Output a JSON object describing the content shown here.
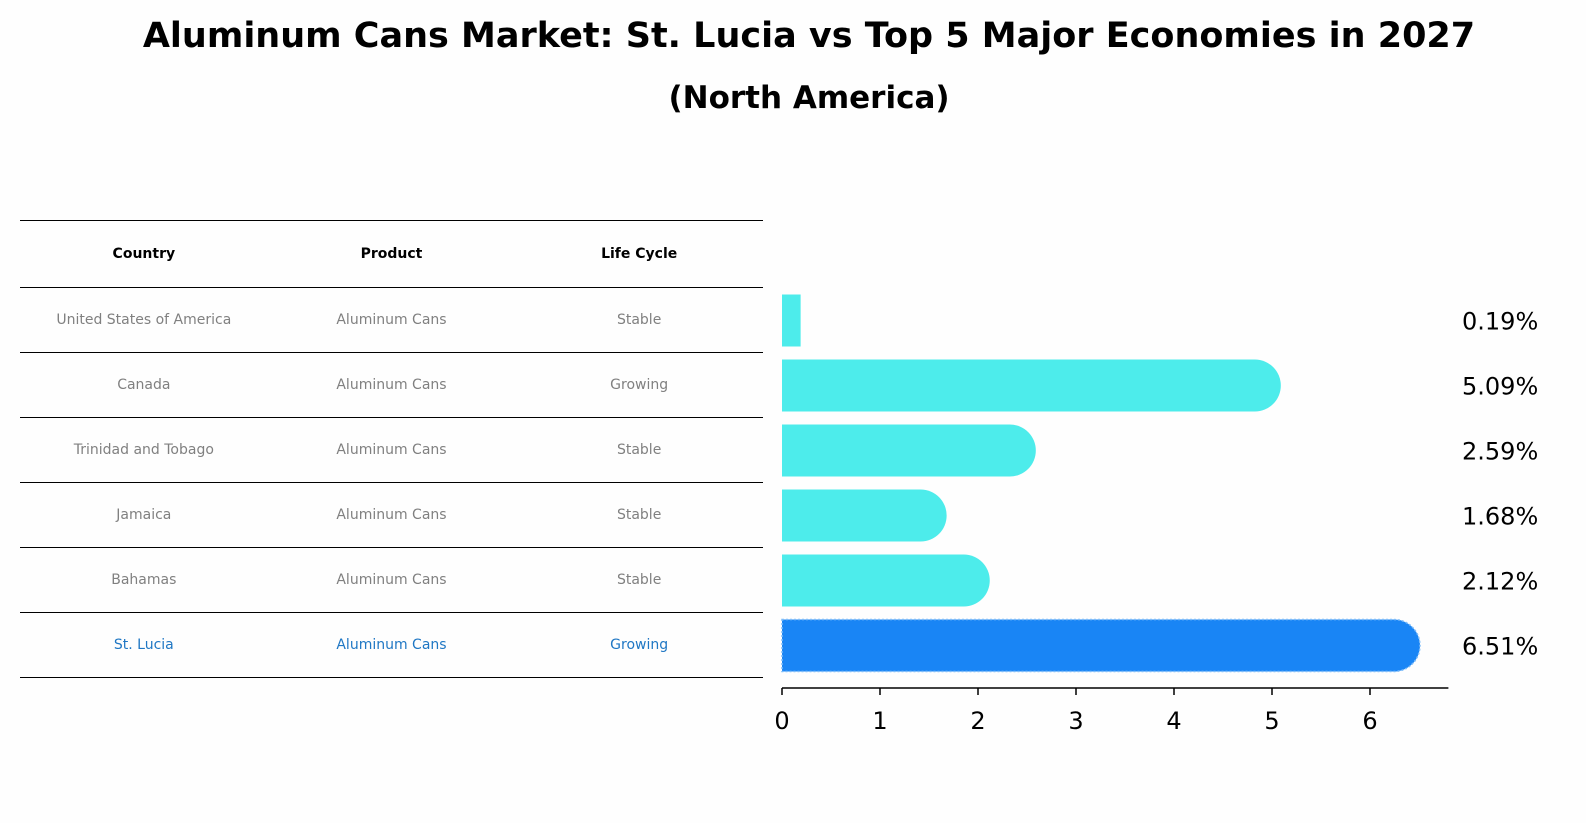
{
  "title": "Aluminum Cans Market: St. Lucia vs Top 5 Major Economies in 2027",
  "subtitle": "(North America)",
  "table": {
    "headers": [
      "Country",
      "Product",
      "Life Cycle"
    ],
    "rows": [
      {
        "country": "United States of America",
        "product": "Aluminum Cans",
        "life_cycle": "Stable"
      },
      {
        "country": "Canada",
        "product": "Aluminum Cans",
        "life_cycle": "Growing"
      },
      {
        "country": "Trinidad and Tobago",
        "product": "Aluminum Cans",
        "life_cycle": "Stable"
      },
      {
        "country": "Jamaica",
        "product": "Aluminum Cans",
        "life_cycle": "Stable"
      },
      {
        "country": "Bahamas",
        "product": "Aluminum Cans",
        "life_cycle": "Stable"
      },
      {
        "country": "St. Lucia",
        "product": "Aluminum Cans",
        "life_cycle": "Growing"
      }
    ]
  },
  "chart_data": {
    "type": "bar",
    "orientation": "horizontal",
    "categories": [
      "United States of America",
      "Canada",
      "Trinidad and Tobago",
      "Jamaica",
      "Bahamas",
      "St. Lucia"
    ],
    "values": [
      0.19,
      5.09,
      2.59,
      1.68,
      2.12,
      6.51
    ],
    "value_labels": [
      "0.19%",
      "5.09%",
      "2.59%",
      "1.68%",
      "2.12%",
      "6.51%"
    ],
    "highlight_index": 5,
    "xlim": [
      0,
      6.8
    ],
    "xticks": [
      0,
      1,
      2,
      3,
      4,
      5,
      6
    ],
    "colors": {
      "default": "#4deceb",
      "highlight": "#1985f5"
    }
  }
}
